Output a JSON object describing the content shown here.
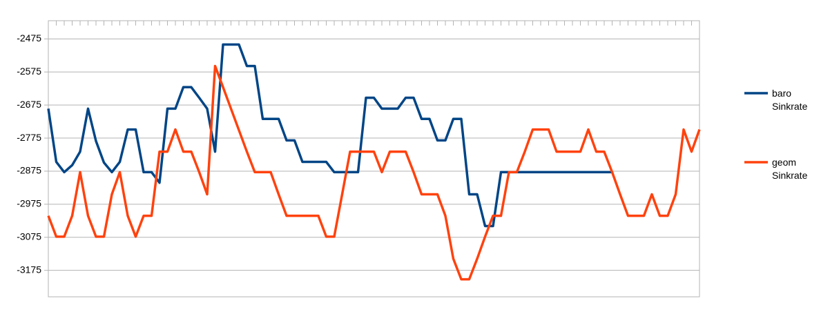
{
  "chart_data": {
    "type": "line",
    "categories": [
      null,
      null,
      null,
      null,
      null,
      null,
      null,
      null,
      null,
      null,
      null,
      null,
      null,
      null,
      null,
      null,
      null,
      null,
      null,
      null,
      null,
      null,
      null,
      null,
      null,
      null,
      null,
      null,
      null,
      null,
      null,
      null,
      null,
      null,
      null,
      null,
      null,
      null,
      null,
      null,
      null,
      null,
      null,
      null,
      null,
      null,
      null,
      null,
      null,
      null,
      null,
      null,
      null,
      null,
      null,
      null,
      null,
      null,
      null,
      null,
      null,
      null,
      null,
      null,
      null,
      null,
      null,
      null,
      null,
      null,
      null,
      null,
      null,
      null,
      null,
      null,
      null,
      null,
      null,
      null,
      null,
      null,
      null
    ],
    "series": [
      {
        "name": "baro Sinkrate",
        "color": "#004586",
        "values": [
          -2686,
          -2847,
          -2878,
          -2857,
          -2816,
          -2686,
          -2784,
          -2849,
          -2878,
          -2847,
          -2749,
          -2749,
          -2878,
          -2878,
          -2910,
          -2686,
          -2686,
          -2621,
          -2621,
          -2653,
          -2686,
          -2816,
          -2492,
          -2492,
          -2492,
          -2557,
          -2557,
          -2717,
          -2717,
          -2717,
          -2782,
          -2782,
          -2847,
          -2847,
          -2847,
          -2847,
          -2878,
          -2878,
          -2878,
          -2878,
          -2653,
          -2653,
          -2686,
          -2686,
          -2686,
          -2653,
          -2653,
          -2717,
          -2717,
          -2782,
          -2782,
          -2717,
          -2717,
          -2945,
          -2945,
          -3041,
          -3041,
          -2878,
          -2878,
          -2878,
          -2878,
          -2878,
          -2878,
          -2878,
          -2878,
          -2878,
          -2878,
          -2878,
          -2878,
          -2878,
          -2878,
          -2878,
          null,
          null,
          null,
          null,
          null,
          null,
          null,
          null,
          null,
          null,
          null
        ]
      },
      {
        "name": "geom Sinkrate",
        "color": "#ff420e",
        "values": [
          -3010,
          -3073,
          -3073,
          -3010,
          -2878,
          -3010,
          -3073,
          -3073,
          -2945,
          -2878,
          -3010,
          -3073,
          -3010,
          -3010,
          -2816,
          -2816,
          -2749,
          -2816,
          -2816,
          -2878,
          -2945,
          -2557,
          -2621,
          -2686,
          -2751,
          -2816,
          -2878,
          -2878,
          -2878,
          -2945,
          -3010,
          -3010,
          -3010,
          -3010,
          -3010,
          -3073,
          -3073,
          -2945,
          -2816,
          -2816,
          -2816,
          -2816,
          -2878,
          -2816,
          -2816,
          -2816,
          -2878,
          -2945,
          -2945,
          -2945,
          -3010,
          -3140,
          -3202,
          -3202,
          -3140,
          -3073,
          -3010,
          -3010,
          -2878,
          -2878,
          -2816,
          -2749,
          -2749,
          -2749,
          -2816,
          -2816,
          -2816,
          -2816,
          -2749,
          -2816,
          -2816,
          -2878,
          -2945,
          -3010,
          -3010,
          -3010,
          -2945,
          -3010,
          -3010,
          -2945,
          -2749,
          -2816,
          -2749
        ]
      }
    ],
    "ylim": [
      -3255,
      -2420
    ],
    "yticks": [
      -3175,
      -3075,
      -2975,
      -2875,
      -2775,
      -2675,
      -2575,
      -2475
    ],
    "grid": true,
    "legend": "right"
  }
}
